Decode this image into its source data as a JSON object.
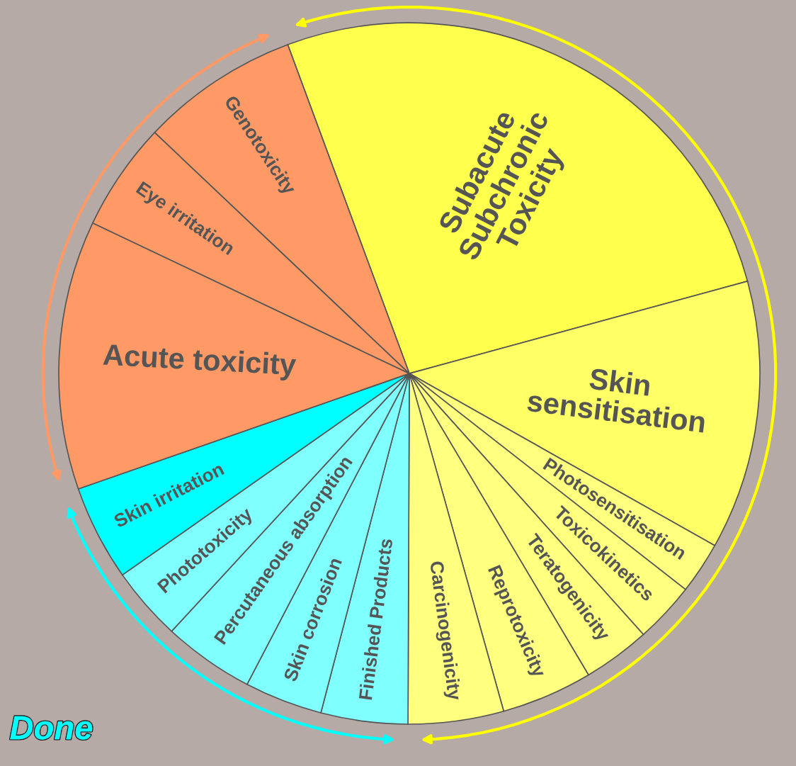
{
  "chart_data": {
    "type": "pie",
    "categories": [
      "Subacute\nSubchronic\nToxicity",
      "Skin\nsensitisation",
      "Photosensitisation",
      "Toxicokinetics",
      "Teratogenicity",
      "Reprotoxicity",
      "Carcinogenicity",
      "Finished Products",
      "Skin corrosion",
      "Percutaneous absorption",
      "Phototoxicity",
      "Skin irritation",
      "Acute toxicity",
      "Eye irritation",
      "Genotoxicity"
    ],
    "values": [
      26.4,
      12.4,
      2.4,
      2.8,
      3.1,
      4.2,
      4.4,
      4.0,
      3.6,
      4.2,
      3.4,
      4.4,
      12.4,
      5.0,
      7.3
    ],
    "colors": [
      "#ffff4d",
      "#ffff66",
      "#ffff80",
      "#ffff80",
      "#ffff80",
      "#ffff80",
      "#ffff80",
      "#80ffff",
      "#80ffff",
      "#80ffff",
      "#80ffff",
      "#00ffff",
      "#ff9966",
      "#ff9966",
      "#ff9966"
    ],
    "annotations": [
      "Done"
    ]
  }
}
